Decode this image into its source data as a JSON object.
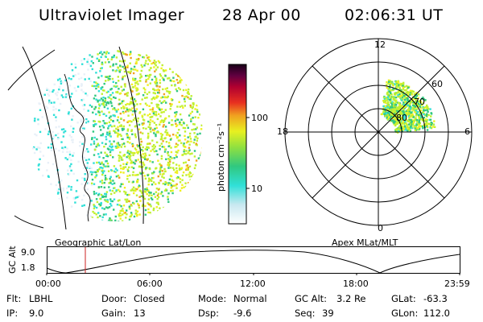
{
  "header": {
    "instrument": "Ultraviolet Imager",
    "date": "28 Apr 00",
    "time": "02:06:31 UT"
  },
  "geo_panel": {
    "caption": "Geographic Lat/Lon"
  },
  "polar_panel": {
    "caption": "Apex MLat/MLT",
    "mlt_labels": {
      "top": "12",
      "right": "6",
      "bottom": "0",
      "left": "18"
    },
    "lat_labels": [
      "60",
      "70",
      "80"
    ]
  },
  "colorbar": {
    "unit_label": "photon cm⁻²s⁻¹",
    "ticks": [
      "100",
      "10"
    ],
    "scale": "log"
  },
  "altitude_strip": {
    "ylabel": "GC Alt",
    "ymax": "9.0",
    "ymin": "1.8",
    "time_ticks": [
      "00:00",
      "06:00",
      "12:00",
      "18:00",
      "23:59"
    ],
    "marker_color": "#cc2222"
  },
  "info": {
    "flt_label": "Flt:",
    "flt_value": "LBHL",
    "ip_label": "IP:",
    "ip_value": "9.0",
    "door_label": "Door:",
    "door_value": "Closed",
    "gain_label": "Gain:",
    "gain_value": "13",
    "mode_label": "Mode:",
    "mode_value": "Normal",
    "dsp_label": "Dsp:",
    "dsp_value": "-9.6",
    "gcalt_label": "GC Alt:",
    "gcalt_value": "3.2 Re",
    "seq_label": "Seq:",
    "seq_value": "39",
    "glat_label": "GLat:",
    "glat_value": "-63.3",
    "glon_label": "GLon:",
    "glon_value": "112.0"
  },
  "colors": {
    "colorbar_stops": [
      "#e8f0f8",
      "#30e0d8",
      "#30c880",
      "#c0f030",
      "#f0f020",
      "#f0a020",
      "#e03020",
      "#a00030",
      "#300030"
    ]
  }
}
